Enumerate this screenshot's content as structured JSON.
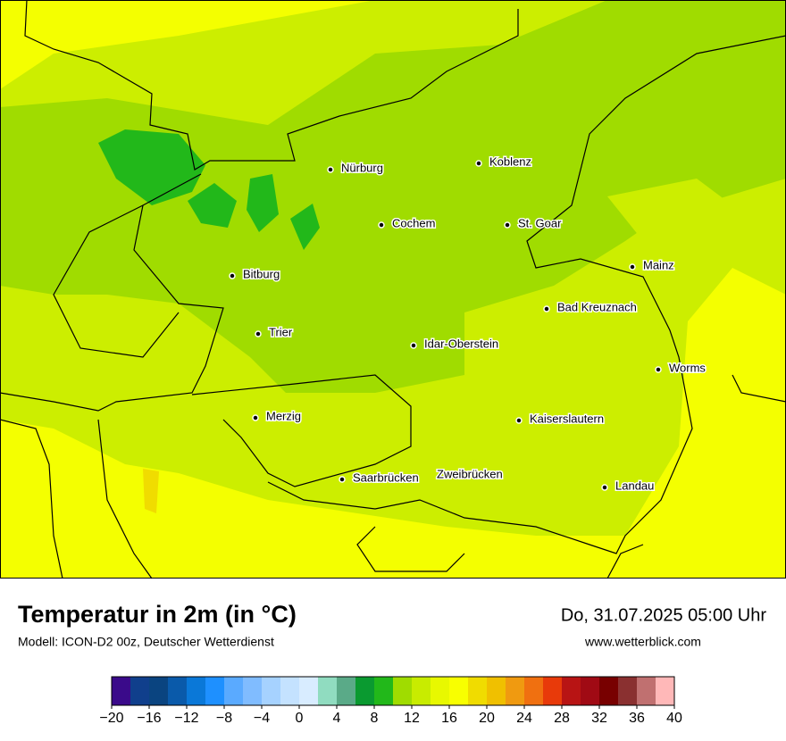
{
  "map": {
    "cities": [
      "Nürburg",
      "Koblenz",
      "Cochem",
      "St. Goar",
      "Mainz",
      "Bitburg",
      "Bad Kreuznach",
      "Trier",
      "Idar-Oberstein",
      "Worms",
      "Merzig",
      "Kaiserslautern",
      "Saarbrücken",
      "Zweibrücken",
      "Landau"
    ]
  },
  "header": {
    "title": "Temperatur in 2m (in °C)",
    "subtitle": "Modell: ICON-D2 00z, Deutscher Wetterdienst",
    "date": "Do, 31.07.2025 05:00 Uhr",
    "website": "www.wetterblick.com"
  },
  "colorbar": {
    "lim": [
      -20,
      40
    ],
    "colors": [
      "#3a0a8a",
      "#103f8c",
      "#0a4480",
      "#0a5aaa",
      "#0a78d8",
      "#1e90ff",
      "#5aaaff",
      "#80bcff",
      "#a6d2ff",
      "#c4e2ff",
      "#d8ecff",
      "#90dcc0",
      "#5aaa88",
      "#0a9a30",
      "#22b81a",
      "#a0dc00",
      "#c8ec00",
      "#e8f800",
      "#f8ff00",
      "#f0dc00",
      "#f0c000",
      "#f09a10",
      "#f07010",
      "#e83a0a",
      "#b81414",
      "#a00a14",
      "#780000",
      "#8a3030",
      "#c07070",
      "#ffb8b8"
    ],
    "ticks": [
      {
        "value": -20,
        "label": "−20"
      },
      {
        "value": -16,
        "label": "−16"
      },
      {
        "value": -12,
        "label": "−12"
      },
      {
        "value": -8,
        "label": "−8"
      },
      {
        "value": -4,
        "label": "−4"
      },
      0,
      4,
      8,
      12,
      16,
      20,
      24,
      28,
      32,
      36,
      40
    ]
  }
}
